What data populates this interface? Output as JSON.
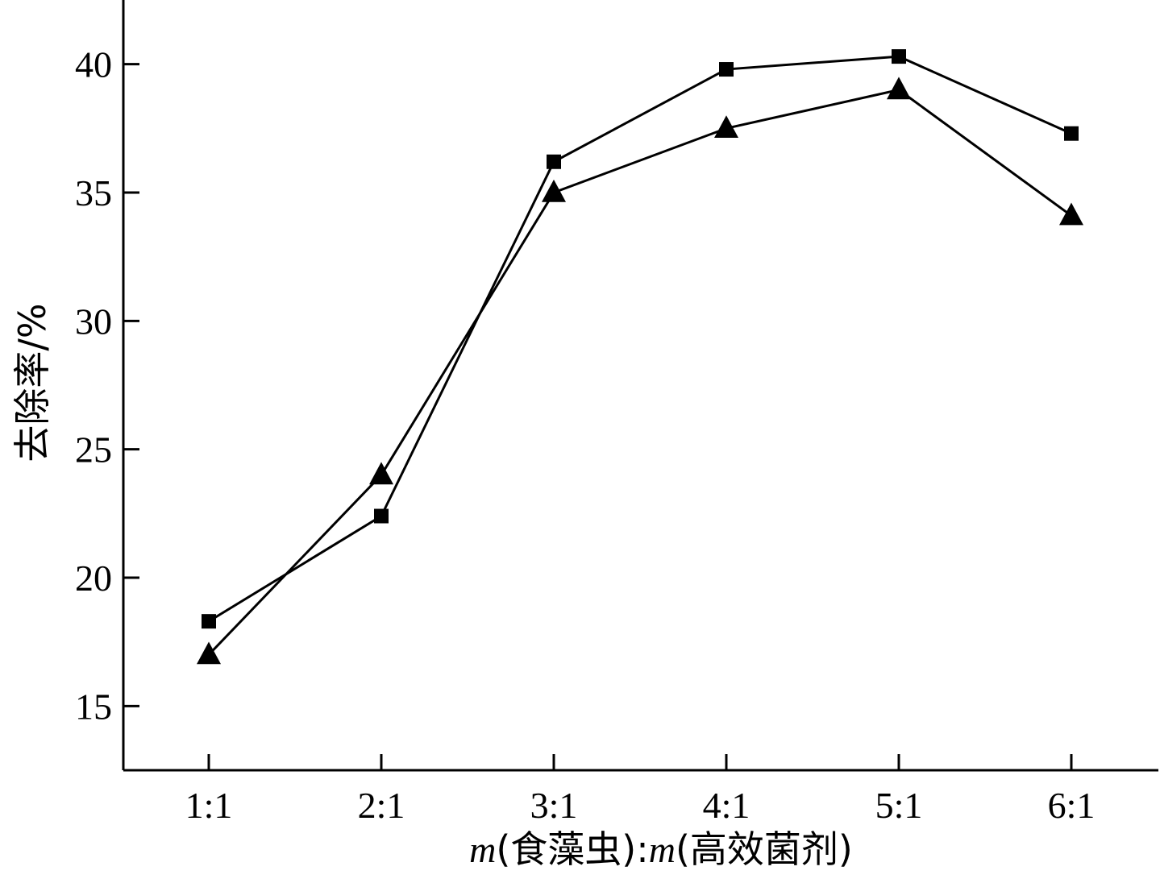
{
  "chart_data": {
    "type": "line",
    "categories": [
      "1:1",
      "2:1",
      "3:1",
      "4:1",
      "5:1",
      "6:1"
    ],
    "series": [
      {
        "marker": "square",
        "values": [
          18.3,
          22.4,
          36.2,
          39.8,
          40.3,
          37.3
        ]
      },
      {
        "marker": "triangle",
        "values": [
          17.0,
          24.0,
          35.0,
          37.5,
          39.0,
          34.1
        ]
      }
    ],
    "title": "",
    "xlabel": "m(食藻虫):m(高效菌剂)",
    "ylabel": "去除率/%",
    "ylim": [
      12.5,
      42.5
    ],
    "yticks": [
      15,
      20,
      25,
      30,
      35,
      40
    ],
    "grid": false,
    "colors": {
      "line": "#000000",
      "marker": "#000000"
    }
  }
}
